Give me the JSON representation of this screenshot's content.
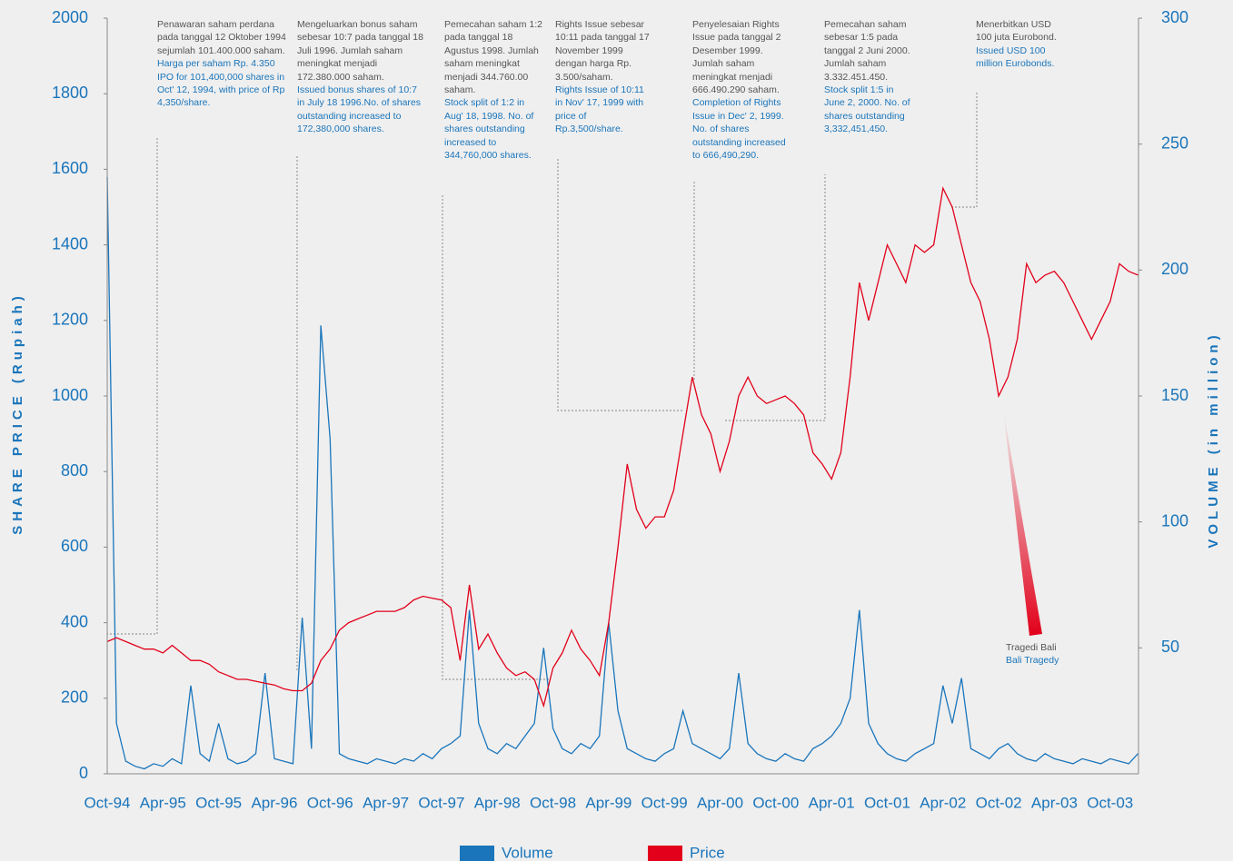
{
  "chart_data": {
    "type": "line",
    "y_label": "SHARE PRICE (Rupiah)",
    "y2_label": "VOLUME (in million)",
    "categories": [
      "Oct-94",
      null,
      null,
      null,
      null,
      null,
      "Apr-95",
      null,
      null,
      null,
      null,
      null,
      "Oct-95",
      null,
      null,
      null,
      null,
      null,
      "Apr-96",
      null,
      null,
      null,
      null,
      null,
      "Oct-96",
      null,
      null,
      null,
      null,
      null,
      "Apr-97",
      null,
      null,
      null,
      null,
      null,
      "Oct-97",
      null,
      null,
      null,
      null,
      null,
      "Apr-98",
      null,
      null,
      null,
      null,
      null,
      "Oct-98",
      null,
      null,
      null,
      null,
      null,
      "Apr-99",
      null,
      null,
      null,
      null,
      null,
      "Oct-99",
      null,
      null,
      null,
      null,
      null,
      "Apr-00",
      null,
      null,
      null,
      null,
      null,
      "Oct-00",
      null,
      null,
      null,
      null,
      null,
      "Apr-01",
      null,
      null,
      null,
      null,
      null,
      "Oct-01",
      null,
      null,
      null,
      null,
      null,
      "Apr-02",
      null,
      null,
      null,
      null,
      null,
      "Oct-02",
      null,
      null,
      null,
      null,
      null,
      "Apr-03",
      null,
      null,
      null,
      null,
      null,
      "Oct-03",
      null,
      null,
      null
    ],
    "series": [
      {
        "name": "Volume",
        "color": "#1a75bb",
        "axis": "y2",
        "values": [
          237,
          20,
          5,
          3,
          2,
          4,
          3,
          6,
          4,
          35,
          8,
          5,
          20,
          6,
          4,
          5,
          8,
          40,
          6,
          5,
          4,
          62,
          10,
          178,
          133,
          8,
          6,
          5,
          4,
          6,
          5,
          4,
          6,
          5,
          8,
          6,
          10,
          12,
          15,
          65,
          20,
          10,
          8,
          12,
          10,
          15,
          20,
          50,
          18,
          10,
          8,
          12,
          10,
          15,
          60,
          25,
          10,
          8,
          6,
          5,
          8,
          10,
          25,
          12,
          10,
          8,
          6,
          10,
          40,
          12,
          8,
          6,
          5,
          8,
          6,
          5,
          10,
          12,
          15,
          20,
          30,
          65,
          20,
          12,
          8,
          6,
          5,
          8,
          10,
          12,
          35,
          20,
          38,
          10,
          8,
          6,
          10,
          12,
          8,
          6,
          5,
          8,
          6,
          5,
          4,
          6,
          5,
          4,
          6,
          5,
          4,
          8
        ]
      },
      {
        "name": "Price",
        "color": "#e2001a",
        "values": [
          350,
          360,
          350,
          340,
          330,
          330,
          320,
          340,
          320,
          300,
          300,
          290,
          270,
          260,
          250,
          250,
          245,
          240,
          235,
          225,
          220,
          220,
          240,
          300,
          330,
          380,
          400,
          410,
          420,
          430,
          430,
          430,
          440,
          460,
          470,
          465,
          460,
          440,
          300,
          500,
          330,
          370,
          320,
          280,
          260,
          270,
          250,
          180,
          280,
          320,
          380,
          330,
          300,
          260,
          400,
          600,
          820,
          700,
          650,
          680,
          680,
          750,
          900,
          1050,
          950,
          900,
          800,
          880,
          1000,
          1050,
          1000,
          980,
          990,
          1000,
          980,
          950,
          850,
          820,
          780,
          850,
          1050,
          1300,
          1200,
          1300,
          1400,
          1350,
          1300,
          1400,
          1380,
          1400,
          1550,
          1500,
          1400,
          1300,
          1250,
          1150,
          1000,
          1050,
          1150,
          1350,
          1300,
          1320,
          1330,
          1300,
          1250,
          1200,
          1150,
          1200,
          1250,
          1350,
          1330,
          1320
        ]
      }
    ],
    "ylim": [
      0,
      2000
    ],
    "yticks": [
      0,
      200,
      400,
      600,
      800,
      1000,
      1200,
      1400,
      1600,
      1800,
      2000
    ],
    "y2lim": [
      0,
      300
    ],
    "y2ticks": [
      50,
      100,
      150,
      200,
      250,
      300
    ],
    "legend": "bottom",
    "annotations": [
      {
        "text": "Penawaran saham perdana pada tanggal 12 Oktober 1994 sejumlah 101.400.000 saham.",
        "text_en": "Harga per saham Rp. 4.350 IPO for 101,400,000 shares in Oct' 12, 1994, with price of Rp 4,350/share."
      },
      {
        "text": "Mengeluarkan bonus saham sebesar 10:7 pada tanggal 18 Juli 1996. Jumlah saham meningkat menjadi 172.380.000 saham.",
        "text_en": "Issued bonus shares of 10:7 in July 18 1996.No. of shares outstanding increased to 172,380,000 shares."
      },
      {
        "text": "Pemecahan saham 1:2 pada tanggal 18 Agustus 1998. Jumlah saham meningkat menjadi 344.760.00 saham.",
        "text_en": "Stock split of 1:2 in Aug' 18, 1998. No. of shares outstanding increased to 344,760,000 shares."
      },
      {
        "text": "Rights Issue sebesar 10:11 pada tanggal 17 November 1999 dengan harga Rp. 3.500/saham.",
        "text_en": "Rights Issue of 10:11 in Nov' 17, 1999 with price of Rp.3,500/share."
      },
      {
        "text": "Penyelesaian Rights Issue pada tanggal 2 Desember 1999. Jumlah saham meningkat menjadi 666.490.290 saham.",
        "text_en": "Completion of Rights Issue in Dec' 2, 1999. No. of shares outstanding increased to 666,490,290."
      },
      {
        "text": "Pemecahan saham sebesar 1:5 pada tanggal 2 Juni 2000. Jumlah saham 3.332.451.450.",
        "text_en": "Stock split 1:5 in June 2, 2000. No. of shares outstanding 3,332,451,450."
      },
      {
        "text": "Menerbitkan USD 100 juta Eurobond.",
        "text_en": "Issued USD 100 million Eurobonds."
      },
      {
        "text": "Tragedi Bali",
        "text_en": "Bali Tragedy"
      }
    ]
  }
}
